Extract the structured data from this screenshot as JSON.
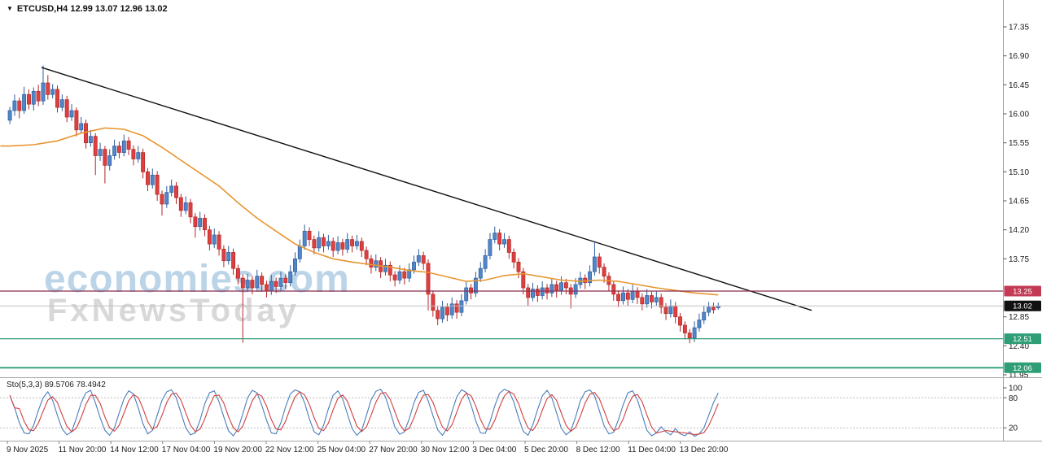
{
  "header": {
    "symbol_line": "ETCUSD,H4 12.99 13.07 12.96 13.02"
  },
  "icons": {
    "symbol_marker": "▼"
  },
  "watermark": {
    "line1": "economies.com",
    "line2": "FxNewsToday"
  },
  "chart_data": {
    "type": "candlestick",
    "title": "ETCUSD,H4",
    "ohlc_header": {
      "open": "12.99",
      "high": "13.07",
      "low": "12.96",
      "close": "13.02"
    },
    "ylim": [
      11.95,
      17.35
    ],
    "price_axis": {
      "ticks": [
        "17.35",
        "16.90",
        "16.45",
        "16.00",
        "15.55",
        "15.10",
        "14.65",
        "14.20",
        "13.75",
        "12.85",
        "12.40",
        "11.95"
      ],
      "badges": [
        {
          "label": "13.25",
          "color": "#c43a54"
        },
        {
          "label": "13.02",
          "color": "#111111"
        },
        {
          "label": "12.51",
          "color": "#2f9e77"
        },
        {
          "label": "12.06",
          "color": "#2f9e77"
        }
      ]
    },
    "time_axis": {
      "labels": [
        "9 Nov 2025",
        "11 Nov 20:00",
        "14 Nov 12:00",
        "17 Nov 04:00",
        "19 Nov 20:00",
        "22 Nov 12:00",
        "25 Nov 04:00",
        "27 Nov 20:00",
        "30 Nov 12:00",
        "3 Dec 04:00",
        "5 Dec 20:00",
        "8 Dec 12:00",
        "11 Dec 04:00",
        "13 Dec 20:00"
      ]
    },
    "colors": {
      "bull_fill": "#5286c8",
      "bull_stroke": "#2d5f9e",
      "bear_fill": "#dd4040",
      "bear_stroke": "#b52626",
      "ma": "#e8952f",
      "trendline": "#111111"
    },
    "hlines": [
      {
        "price": 13.25,
        "color": "#8b2f4f",
        "width": 1.2
      },
      {
        "price": 13.02,
        "color": "#c0c0c0",
        "width": 1
      },
      {
        "price": 12.51,
        "color": "#2f9e77",
        "width": 1.2
      },
      {
        "price": 12.06,
        "color": "#2f9e77",
        "width": 1.8
      }
    ],
    "trendline": {
      "from_index": 7,
      "from_price": 16.72,
      "to_index": 169,
      "to_price": 12.95
    },
    "ma": {
      "color": "#e8952f",
      "points": [
        [
          -2,
          15.5
        ],
        [
          0,
          15.5
        ],
        [
          5,
          15.52
        ],
        [
          10,
          15.58
        ],
        [
          15,
          15.7
        ],
        [
          20,
          15.78
        ],
        [
          24,
          15.76
        ],
        [
          28,
          15.66
        ],
        [
          32,
          15.48
        ],
        [
          36,
          15.28
        ],
        [
          40,
          15.08
        ],
        [
          44,
          14.88
        ],
        [
          48,
          14.62
        ],
        [
          52,
          14.38
        ],
        [
          56,
          14.18
        ],
        [
          60,
          13.98
        ],
        [
          64,
          13.85
        ],
        [
          68,
          13.75
        ],
        [
          72,
          13.7
        ],
        [
          76,
          13.66
        ],
        [
          80,
          13.62
        ],
        [
          84,
          13.57
        ],
        [
          88,
          13.54
        ],
        [
          92,
          13.47
        ],
        [
          96,
          13.4
        ],
        [
          100,
          13.42
        ],
        [
          104,
          13.49
        ],
        [
          108,
          13.52
        ],
        [
          112,
          13.47
        ],
        [
          116,
          13.42
        ],
        [
          120,
          13.4
        ],
        [
          124,
          13.42
        ],
        [
          128,
          13.4
        ],
        [
          132,
          13.35
        ],
        [
          136,
          13.3
        ],
        [
          140,
          13.26
        ],
        [
          144,
          13.22
        ],
        [
          149,
          13.19
        ]
      ]
    },
    "candles": [
      [
        15.9,
        16.11,
        15.84,
        16.05
      ],
      [
        16.05,
        16.3,
        15.97,
        16.2
      ],
      [
        16.2,
        16.25,
        15.93,
        16.05
      ],
      [
        16.05,
        16.42,
        16.0,
        16.3
      ],
      [
        16.3,
        16.38,
        16.07,
        16.15
      ],
      [
        16.15,
        16.41,
        16.05,
        16.35
      ],
      [
        16.35,
        16.45,
        16.12,
        16.2
      ],
      [
        16.2,
        16.75,
        16.14,
        16.48
      ],
      [
        16.48,
        16.6,
        16.22,
        16.3
      ],
      [
        16.3,
        16.46,
        16.24,
        16.38
      ],
      [
        16.38,
        16.44,
        16.02,
        16.1
      ],
      [
        16.1,
        16.3,
        16.04,
        16.22
      ],
      [
        16.22,
        16.28,
        15.87,
        15.95
      ],
      [
        15.95,
        16.15,
        15.89,
        16.05
      ],
      [
        16.05,
        16.1,
        15.65,
        15.75
      ],
      [
        15.75,
        15.95,
        15.69,
        15.85
      ],
      [
        15.85,
        15.91,
        15.46,
        15.55
      ],
      [
        15.55,
        15.75,
        15.49,
        15.65
      ],
      [
        15.65,
        15.7,
        15.05,
        15.35
      ],
      [
        15.35,
        15.55,
        15.27,
        15.45
      ],
      [
        15.45,
        15.5,
        14.92,
        15.2
      ],
      [
        15.2,
        15.45,
        15.12,
        15.35
      ],
      [
        15.35,
        15.6,
        15.29,
        15.5
      ],
      [
        15.5,
        15.57,
        15.31,
        15.4
      ],
      [
        15.4,
        15.68,
        15.34,
        15.58
      ],
      [
        15.58,
        15.64,
        15.36,
        15.45
      ],
      [
        15.45,
        15.51,
        15.2,
        15.3
      ],
      [
        15.3,
        15.5,
        15.24,
        15.4
      ],
      [
        15.4,
        15.46,
        15.0,
        15.1
      ],
      [
        15.1,
        15.16,
        14.8,
        14.9
      ],
      [
        14.9,
        15.15,
        14.84,
        15.05
      ],
      [
        15.05,
        15.11,
        14.65,
        14.75
      ],
      [
        14.75,
        14.81,
        14.42,
        14.6
      ],
      [
        14.6,
        14.88,
        14.54,
        14.78
      ],
      [
        14.78,
        14.98,
        14.72,
        14.88
      ],
      [
        14.88,
        14.94,
        14.6,
        14.7
      ],
      [
        14.7,
        14.76,
        14.4,
        14.5
      ],
      [
        14.5,
        14.72,
        14.44,
        14.62
      ],
      [
        14.62,
        14.68,
        14.3,
        14.4
      ],
      [
        14.4,
        14.46,
        14.08,
        14.25
      ],
      [
        14.25,
        14.48,
        14.19,
        14.38
      ],
      [
        14.38,
        14.44,
        14.1,
        14.2
      ],
      [
        14.2,
        14.26,
        13.88,
        13.98
      ],
      [
        13.98,
        14.22,
        13.92,
        14.12
      ],
      [
        14.12,
        14.18,
        13.8,
        13.9
      ],
      [
        13.9,
        13.96,
        13.62,
        13.72
      ],
      [
        13.72,
        13.95,
        13.66,
        13.85
      ],
      [
        13.85,
        13.91,
        13.5,
        13.6
      ],
      [
        13.6,
        13.66,
        13.35,
        13.45
      ],
      [
        13.45,
        13.51,
        12.45,
        13.3
      ],
      [
        13.3,
        13.52,
        13.24,
        13.42
      ],
      [
        13.42,
        13.48,
        13.2,
        13.3
      ],
      [
        13.3,
        13.58,
        13.24,
        13.48
      ],
      [
        13.48,
        13.54,
        13.25,
        13.35
      ],
      [
        13.35,
        13.41,
        13.15,
        13.25
      ],
      [
        13.25,
        13.5,
        13.19,
        13.4
      ],
      [
        13.4,
        13.46,
        13.22,
        13.32
      ],
      [
        13.32,
        13.55,
        13.26,
        13.45
      ],
      [
        13.45,
        13.51,
        13.28,
        13.38
      ],
      [
        13.38,
        13.65,
        13.32,
        13.55
      ],
      [
        13.55,
        13.85,
        13.49,
        13.75
      ],
      [
        13.75,
        14.05,
        13.69,
        13.95
      ],
      [
        13.95,
        14.28,
        13.89,
        14.18
      ],
      [
        14.18,
        14.24,
        13.95,
        14.05
      ],
      [
        14.05,
        14.11,
        13.82,
        13.92
      ],
      [
        13.92,
        14.18,
        13.86,
        14.08
      ],
      [
        14.08,
        14.14,
        13.85,
        13.95
      ],
      [
        13.95,
        14.12,
        13.89,
        14.02
      ],
      [
        14.02,
        14.08,
        13.78,
        13.88
      ],
      [
        13.88,
        14.1,
        13.82,
        14.0
      ],
      [
        14.0,
        14.06,
        13.8,
        13.9
      ],
      [
        13.9,
        14.15,
        13.84,
        14.05
      ],
      [
        14.05,
        14.11,
        13.85,
        13.95
      ],
      [
        13.95,
        14.12,
        13.89,
        14.02
      ],
      [
        14.02,
        14.08,
        13.78,
        13.88
      ],
      [
        13.88,
        13.94,
        13.65,
        13.75
      ],
      [
        13.75,
        13.81,
        13.52,
        13.62
      ],
      [
        13.62,
        13.82,
        13.56,
        13.72
      ],
      [
        13.72,
        13.78,
        13.45,
        13.55
      ],
      [
        13.55,
        13.75,
        13.49,
        13.65
      ],
      [
        13.65,
        13.71,
        13.4,
        13.5
      ],
      [
        13.5,
        13.56,
        13.32,
        13.42
      ],
      [
        13.42,
        13.65,
        13.36,
        13.55
      ],
      [
        13.55,
        13.61,
        13.35,
        13.45
      ],
      [
        13.45,
        13.68,
        13.39,
        13.58
      ],
      [
        13.58,
        13.8,
        13.52,
        13.7
      ],
      [
        13.7,
        13.9,
        13.64,
        13.8
      ],
      [
        13.8,
        13.86,
        13.58,
        13.68
      ],
      [
        13.68,
        13.74,
        12.95,
        13.2
      ],
      [
        13.2,
        13.26,
        12.85,
        12.95
      ],
      [
        12.95,
        13.01,
        12.72,
        12.82
      ],
      [
        12.82,
        13.1,
        12.76,
        13.0
      ],
      [
        13.0,
        13.06,
        12.78,
        12.88
      ],
      [
        12.88,
        13.15,
        12.82,
        13.05
      ],
      [
        13.05,
        13.11,
        12.82,
        12.92
      ],
      [
        12.92,
        13.2,
        12.86,
        13.1
      ],
      [
        13.1,
        13.4,
        13.04,
        13.3
      ],
      [
        13.3,
        13.36,
        13.12,
        13.22
      ],
      [
        13.22,
        13.55,
        13.16,
        13.45
      ],
      [
        13.45,
        13.7,
        13.39,
        13.6
      ],
      [
        13.6,
        13.9,
        13.54,
        13.8
      ],
      [
        13.8,
        14.15,
        13.74,
        14.05
      ],
      [
        14.05,
        14.25,
        13.99,
        14.15
      ],
      [
        14.15,
        14.21,
        13.88,
        13.98
      ],
      [
        13.98,
        14.15,
        13.92,
        14.05
      ],
      [
        14.05,
        14.11,
        13.75,
        13.85
      ],
      [
        13.85,
        13.91,
        13.6,
        13.7
      ],
      [
        13.7,
        13.76,
        13.45,
        13.55
      ],
      [
        13.55,
        13.61,
        13.2,
        13.3
      ],
      [
        13.3,
        13.36,
        13.02,
        13.15
      ],
      [
        13.15,
        13.38,
        13.09,
        13.28
      ],
      [
        13.28,
        13.34,
        13.08,
        13.18
      ],
      [
        13.18,
        13.4,
        13.12,
        13.3
      ],
      [
        13.3,
        13.36,
        13.12,
        13.22
      ],
      [
        13.22,
        13.45,
        13.16,
        13.35
      ],
      [
        13.35,
        13.41,
        13.15,
        13.25
      ],
      [
        13.25,
        13.48,
        13.19,
        13.38
      ],
      [
        13.38,
        13.44,
        13.2,
        13.3
      ],
      [
        13.3,
        13.36,
        12.98,
        13.2
      ],
      [
        13.2,
        13.45,
        13.14,
        13.35
      ],
      [
        13.35,
        13.55,
        13.29,
        13.45
      ],
      [
        13.45,
        13.51,
        13.28,
        13.38
      ],
      [
        13.38,
        13.65,
        13.32,
        13.55
      ],
      [
        13.55,
        14.0,
        13.49,
        13.78
      ],
      [
        13.78,
        13.84,
        13.52,
        13.62
      ],
      [
        13.62,
        13.68,
        13.38,
        13.48
      ],
      [
        13.48,
        13.54,
        13.25,
        13.35
      ],
      [
        13.35,
        13.41,
        13.1,
        13.2
      ],
      [
        13.2,
        13.26,
        13.0,
        13.1
      ],
      [
        13.1,
        13.32,
        13.04,
        13.22
      ],
      [
        13.22,
        13.28,
        13.02,
        13.12
      ],
      [
        13.12,
        13.35,
        13.06,
        13.25
      ],
      [
        13.25,
        13.31,
        13.05,
        13.15
      ],
      [
        13.15,
        13.21,
        12.95,
        13.05
      ],
      [
        13.05,
        13.28,
        12.99,
        13.18
      ],
      [
        13.18,
        13.24,
        12.98,
        13.08
      ],
      [
        13.08,
        13.25,
        13.02,
        13.15
      ],
      [
        13.15,
        13.21,
        12.9,
        13.0
      ],
      [
        13.0,
        13.06,
        12.8,
        12.9
      ],
      [
        12.9,
        13.12,
        12.84,
        13.02
      ],
      [
        13.02,
        13.08,
        12.75,
        12.85
      ],
      [
        12.85,
        12.91,
        12.62,
        12.72
      ],
      [
        12.72,
        12.78,
        12.5,
        12.6
      ],
      [
        12.6,
        12.66,
        12.44,
        12.52
      ],
      [
        12.52,
        12.78,
        12.46,
        12.68
      ],
      [
        12.68,
        12.9,
        12.62,
        12.8
      ],
      [
        12.8,
        13.02,
        12.74,
        12.92
      ],
      [
        12.92,
        13.08,
        12.86,
        13.0
      ],
      [
        13.0,
        13.07,
        12.9,
        12.96
      ],
      [
        12.99,
        13.07,
        12.96,
        13.02
      ]
    ],
    "stochastic": {
      "label": "Sto(5,3,3) 89.5706 78.4942",
      "main_value": "89.5706",
      "signal_value": "78.4942",
      "ylim": [
        0,
        100
      ],
      "main_color": "#4a7ebb",
      "signal_color": "#d04040",
      "levels": [
        {
          "label": "100",
          "value": 100
        },
        {
          "label": "80",
          "value": 80
        },
        {
          "label": "20",
          "value": 20
        }
      ],
      "dashed_levels": [
        80,
        20
      ],
      "k": [
        85,
        60,
        30,
        10,
        8,
        25,
        55,
        80,
        92,
        75,
        45,
        18,
        6,
        12,
        40,
        70,
        90,
        95,
        70,
        40,
        15,
        5,
        20,
        50,
        78,
        94,
        88,
        60,
        28,
        8,
        15,
        45,
        75,
        92,
        96,
        80,
        50,
        20,
        6,
        10,
        35,
        68,
        90,
        94,
        72,
        42,
        14,
        4,
        18,
        48,
        80,
        95,
        90,
        65,
        35,
        10,
        8,
        30,
        62,
        88,
        96,
        92,
        70,
        38,
        12,
        6,
        25,
        58,
        85,
        94,
        78,
        48,
        18,
        5,
        15,
        45,
        76,
        93,
        97,
        82,
        52,
        22,
        7,
        12,
        38,
        70,
        91,
        95,
        74,
        44,
        16,
        5,
        20,
        52,
        82,
        96,
        91,
        66,
        34,
        10,
        9,
        32,
        64,
        89,
        97,
        93,
        72,
        40,
        13,
        5,
        26,
        56,
        84,
        95,
        80,
        50,
        19,
        6,
        14,
        42,
        74,
        92,
        96,
        84,
        54,
        24,
        8,
        11,
        36,
        66,
        90,
        94,
        76,
        46,
        15,
        4,
        10,
        22,
        12,
        6,
        18,
        8,
        4,
        12,
        3,
        8,
        20,
        45,
        70,
        90
      ]
    }
  }
}
